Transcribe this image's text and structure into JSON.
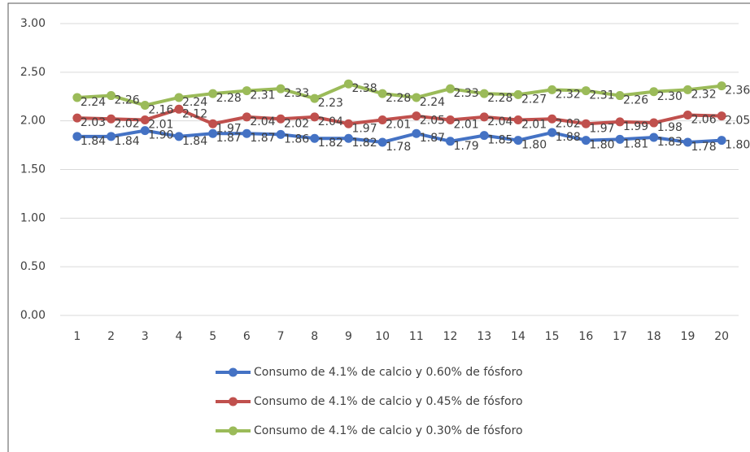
{
  "chart_data": {
    "type": "line",
    "categories": [
      "1",
      "2",
      "3",
      "4",
      "5",
      "6",
      "7",
      "8",
      "9",
      "10",
      "11",
      "12",
      "13",
      "14",
      "15",
      "16",
      "17",
      "18",
      "19",
      "20"
    ],
    "series": [
      {
        "name": "Consumo de 4.1% de calcio y 0.60% de fósforo",
        "color": "#4472c4",
        "values": [
          1.84,
          1.84,
          1.9,
          1.84,
          1.87,
          1.87,
          1.86,
          1.82,
          1.82,
          1.78,
          1.87,
          1.79,
          1.85,
          1.8,
          1.88,
          1.8,
          1.81,
          1.83,
          1.78,
          1.8
        ],
        "value_labels": [
          "1.84",
          "1.84",
          "1.90",
          "1.84",
          "1.87",
          "1.87",
          "1.86",
          "1.82",
          "1.82",
          "1.78",
          "1.87",
          "1.79",
          "1.85",
          "1.80",
          "1.88",
          "1.80",
          "1.81",
          "1.83",
          "1.78",
          "1.80"
        ]
      },
      {
        "name": "Consumo de 4.1% de calcio y 0.45% de fósforo",
        "color": "#c0504d",
        "values": [
          2.03,
          2.02,
          2.01,
          2.12,
          1.97,
          2.04,
          2.02,
          2.04,
          1.97,
          2.01,
          2.05,
          2.01,
          2.04,
          2.01,
          2.02,
          1.97,
          1.99,
          1.98,
          2.06,
          2.05
        ],
        "value_labels": [
          "2.03",
          "2.02",
          "2.01",
          "2.12",
          "1.97",
          "2.04",
          "2.02",
          "2.04",
          "1.97",
          "2.01",
          "2.05",
          "2.01",
          "2.04",
          "2.01",
          "2.02",
          "1.97",
          "1.99",
          "1.98",
          "2.06",
          "2.05"
        ]
      },
      {
        "name": "Consumo de 4.1% de calcio y 0.30% de fósforo",
        "color": "#9bbb59",
        "values": [
          2.24,
          2.26,
          2.16,
          2.24,
          2.28,
          2.31,
          2.33,
          2.23,
          2.38,
          2.28,
          2.24,
          2.33,
          2.28,
          2.27,
          2.32,
          2.31,
          2.26,
          2.3,
          2.32,
          2.36
        ],
        "value_labels": [
          "2.24",
          "2.26",
          "2.16",
          "2.24",
          "2.28",
          "2.31",
          "2.33",
          "2.23",
          "2.38",
          "2.28",
          "2.24",
          "2.33",
          "2.28",
          "2.27",
          "2.32",
          "2.31",
          "2.26",
          "2.30",
          "2.32",
          "2.36"
        ]
      }
    ],
    "ylim": [
      0,
      3
    ],
    "yticks": [
      {
        "value": 0,
        "label": "0.00"
      },
      {
        "value": 0.5,
        "label": "0.50"
      },
      {
        "value": 1,
        "label": "1.00"
      },
      {
        "value": 1.5,
        "label": "1.50"
      },
      {
        "value": 2,
        "label": "2.00"
      },
      {
        "value": 2.5,
        "label": "2.50"
      },
      {
        "value": 3,
        "label": "3.00"
      }
    ],
    "grid": true,
    "legend": "bottom"
  }
}
